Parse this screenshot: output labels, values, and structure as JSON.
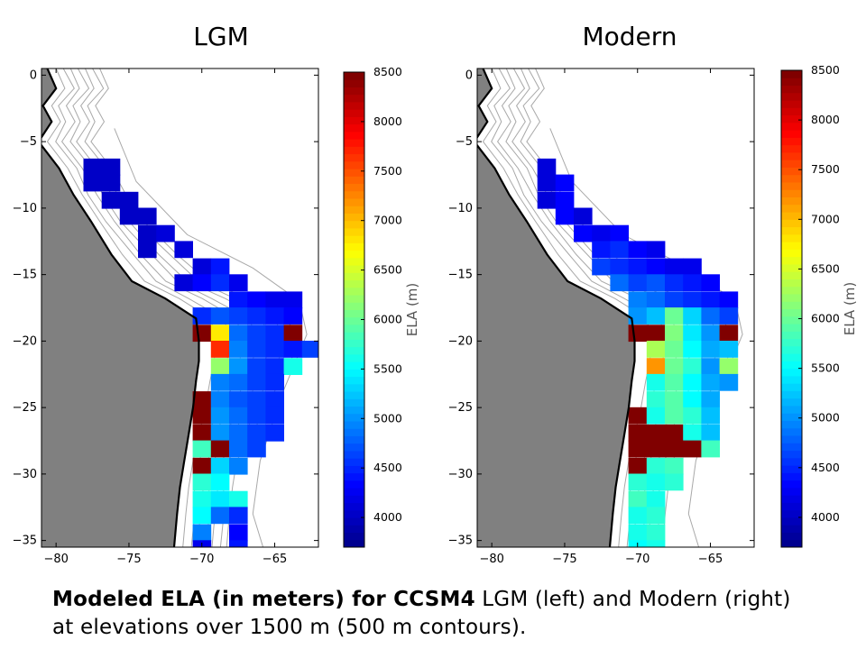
{
  "panels": [
    {
      "title": "LGM",
      "colorbar_label": "ELA (m)"
    },
    {
      "title": "Modern",
      "colorbar_label": "ELA (m)"
    }
  ],
  "caption": {
    "bold": "Modeled ELA (in meters) for CCSM4",
    "normal_line1": " LGM (left) and Modern (right)",
    "line2": "at elevations over 1500 m (500 m contours)."
  },
  "colors": {
    "land": "#808080",
    "coastline": "#000000",
    "contour": "#a8a8a8",
    "colormap": [
      "#00008f",
      "#0000ff",
      "#0080ff",
      "#00ffff",
      "#80ff80",
      "#ffff00",
      "#ff8000",
      "#ff0000",
      "#800000"
    ]
  },
  "chart_data": [
    {
      "type": "heatmap",
      "title": "LGM",
      "xlabel": "",
      "ylabel": "",
      "x_ticks": [
        -80,
        -75,
        -70,
        -65
      ],
      "y_ticks": [
        0,
        -5,
        -10,
        -15,
        -20,
        -25,
        -30,
        -35
      ],
      "xlim": [
        -81,
        -62
      ],
      "ylim": [
        -35.5,
        0.5
      ],
      "cell_size_deg": 1.25,
      "colorbar": {
        "label": "ELA (m)",
        "range": [
          3700,
          8500
        ],
        "ticks": [
          4000,
          4500,
          5000,
          5500,
          6000,
          6500,
          7000,
          7500,
          8000,
          8500
        ]
      },
      "cells": [
        {
          "lon": -77.5,
          "lat": -6.9,
          "ela": 4000
        },
        {
          "lon": -76.25,
          "lat": -6.9,
          "ela": 4000
        },
        {
          "lon": -77.5,
          "lat": -8.1,
          "ela": 4000
        },
        {
          "lon": -76.25,
          "lat": -8.1,
          "ela": 4000
        },
        {
          "lon": -76.25,
          "lat": -9.4,
          "ela": 4000
        },
        {
          "lon": -75.0,
          "lat": -9.4,
          "ela": 4000
        },
        {
          "lon": -75.0,
          "lat": -10.6,
          "ela": 4000
        },
        {
          "lon": -73.75,
          "lat": -10.6,
          "ela": 4000
        },
        {
          "lon": -73.75,
          "lat": -11.9,
          "ela": 4000
        },
        {
          "lon": -72.5,
          "lat": -11.9,
          "ela": 4100
        },
        {
          "lon": -73.75,
          "lat": -13.1,
          "ela": 4000
        },
        {
          "lon": -71.25,
          "lat": -13.1,
          "ela": 4100
        },
        {
          "lon": -70.0,
          "lat": -14.4,
          "ela": 4100
        },
        {
          "lon": -68.75,
          "lat": -14.4,
          "ela": 4400
        },
        {
          "lon": -71.25,
          "lat": -15.6,
          "ela": 4100
        },
        {
          "lon": -70.0,
          "lat": -15.6,
          "ela": 4300
        },
        {
          "lon": -68.75,
          "lat": -15.6,
          "ela": 4500
        },
        {
          "lon": -67.5,
          "lat": -15.6,
          "ela": 4200
        },
        {
          "lon": -67.5,
          "lat": -16.9,
          "ela": 4400
        },
        {
          "lon": -66.25,
          "lat": -16.9,
          "ela": 4300
        },
        {
          "lon": -65.0,
          "lat": -16.9,
          "ela": 4200
        },
        {
          "lon": -63.75,
          "lat": -16.9,
          "ela": 4200
        },
        {
          "lon": -70.0,
          "lat": -18.1,
          "ela": 4500
        },
        {
          "lon": -68.75,
          "lat": -18.1,
          "ela": 4700
        },
        {
          "lon": -67.5,
          "lat": -18.1,
          "ela": 4600
        },
        {
          "lon": -66.25,
          "lat": -18.1,
          "ela": 4500
        },
        {
          "lon": -65.0,
          "lat": -18.1,
          "ela": 4400
        },
        {
          "lon": -63.75,
          "lat": -18.1,
          "ela": 4300
        },
        {
          "lon": -70.0,
          "lat": -19.4,
          "ela": 8500
        },
        {
          "lon": -68.75,
          "lat": -19.4,
          "ela": 6800
        },
        {
          "lon": -67.5,
          "lat": -19.4,
          "ela": 4800
        },
        {
          "lon": -66.25,
          "lat": -19.4,
          "ela": 4600
        },
        {
          "lon": -65.0,
          "lat": -19.4,
          "ela": 4500
        },
        {
          "lon": -63.75,
          "lat": -19.4,
          "ela": 8500
        },
        {
          "lon": -68.75,
          "lat": -20.6,
          "ela": 7700
        },
        {
          "lon": -67.5,
          "lat": -20.6,
          "ela": 4900
        },
        {
          "lon": -66.25,
          "lat": -20.6,
          "ela": 4600
        },
        {
          "lon": -65.0,
          "lat": -20.6,
          "ela": 4500
        },
        {
          "lon": -63.75,
          "lat": -20.6,
          "ela": 4400
        },
        {
          "lon": -62.5,
          "lat": -20.6,
          "ela": 4600
        },
        {
          "lon": -68.75,
          "lat": -21.9,
          "ela": 6200
        },
        {
          "lon": -67.5,
          "lat": -21.9,
          "ela": 5000
        },
        {
          "lon": -66.25,
          "lat": -21.9,
          "ela": 4600
        },
        {
          "lon": -65.0,
          "lat": -21.9,
          "ela": 4500
        },
        {
          "lon": -63.75,
          "lat": -21.9,
          "ela": 5600
        },
        {
          "lon": -68.75,
          "lat": -23.1,
          "ela": 4900
        },
        {
          "lon": -67.5,
          "lat": -23.1,
          "ela": 4800
        },
        {
          "lon": -66.25,
          "lat": -23.1,
          "ela": 4600
        },
        {
          "lon": -65.0,
          "lat": -23.1,
          "ela": 4500
        },
        {
          "lon": -70.0,
          "lat": -24.4,
          "ela": 8500
        },
        {
          "lon": -68.75,
          "lat": -24.4,
          "ela": 4900
        },
        {
          "lon": -67.5,
          "lat": -24.4,
          "ela": 4700
        },
        {
          "lon": -66.25,
          "lat": -24.4,
          "ela": 4600
        },
        {
          "lon": -65.0,
          "lat": -24.4,
          "ela": 4500
        },
        {
          "lon": -70.0,
          "lat": -25.6,
          "ela": 8500
        },
        {
          "lon": -68.75,
          "lat": -25.6,
          "ela": 5000
        },
        {
          "lon": -67.5,
          "lat": -25.6,
          "ela": 4800
        },
        {
          "lon": -66.25,
          "lat": -25.6,
          "ela": 4600
        },
        {
          "lon": -65.0,
          "lat": -25.6,
          "ela": 4500
        },
        {
          "lon": -70.0,
          "lat": -26.9,
          "ela": 8500
        },
        {
          "lon": -68.75,
          "lat": -26.9,
          "ela": 5000
        },
        {
          "lon": -67.5,
          "lat": -26.9,
          "ela": 4800
        },
        {
          "lon": -66.25,
          "lat": -26.9,
          "ela": 4600
        },
        {
          "lon": -65.0,
          "lat": -26.9,
          "ela": 4500
        },
        {
          "lon": -70.0,
          "lat": -28.1,
          "ela": 5800
        },
        {
          "lon": -68.75,
          "lat": -28.1,
          "ela": 8500
        },
        {
          "lon": -67.5,
          "lat": -28.1,
          "ela": 4800
        },
        {
          "lon": -66.25,
          "lat": -28.1,
          "ela": 4600
        },
        {
          "lon": -70.0,
          "lat": -29.4,
          "ela": 8500
        },
        {
          "lon": -68.75,
          "lat": -29.4,
          "ela": 5300
        },
        {
          "lon": -67.5,
          "lat": -29.4,
          "ela": 4900
        },
        {
          "lon": -70.0,
          "lat": -30.6,
          "ela": 5700
        },
        {
          "lon": -68.75,
          "lat": -30.6,
          "ela": 5500
        },
        {
          "lon": -70.0,
          "lat": -31.9,
          "ela": 5600
        },
        {
          "lon": -68.75,
          "lat": -31.9,
          "ela": 5400
        },
        {
          "lon": -67.5,
          "lat": -31.9,
          "ela": 5600
        },
        {
          "lon": -70.0,
          "lat": -33.1,
          "ela": 5500
        },
        {
          "lon": -68.75,
          "lat": -33.1,
          "ela": 4800
        },
        {
          "lon": -67.5,
          "lat": -33.1,
          "ela": 4500
        },
        {
          "lon": -70.0,
          "lat": -34.4,
          "ela": 4900
        },
        {
          "lon": -67.5,
          "lat": -34.4,
          "ela": 4300
        },
        {
          "lon": -70.0,
          "lat": -35.6,
          "ela": 4200
        },
        {
          "lon": -67.5,
          "lat": -35.6,
          "ela": 4400
        }
      ]
    },
    {
      "type": "heatmap",
      "title": "Modern",
      "xlabel": "",
      "ylabel": "",
      "x_ticks": [
        -80,
        -75,
        -70,
        -65
      ],
      "y_ticks": [
        0,
        -5,
        -10,
        -15,
        -20,
        -25,
        -30,
        -35
      ],
      "xlim": [
        -81,
        -62
      ],
      "ylim": [
        -35.5,
        0.5
      ],
      "cell_size_deg": 1.25,
      "colorbar": {
        "label": "ELA (m)",
        "range": [
          3700,
          8500
        ],
        "ticks": [
          4000,
          4500,
          5000,
          5500,
          6000,
          6500,
          7000,
          7500,
          8000,
          8500
        ]
      },
      "cells": [
        {
          "lon": -76.25,
          "lat": -6.9,
          "ela": 4100
        },
        {
          "lon": -76.25,
          "lat": -8.1,
          "ela": 4100
        },
        {
          "lon": -75.0,
          "lat": -8.1,
          "ela": 4300
        },
        {
          "lon": -76.25,
          "lat": -9.4,
          "ela": 4100
        },
        {
          "lon": -75.0,
          "lat": -9.4,
          "ela": 4300
        },
        {
          "lon": -75.0,
          "lat": -10.6,
          "ela": 4300
        },
        {
          "lon": -73.75,
          "lat": -10.6,
          "ela": 4100
        },
        {
          "lon": -73.75,
          "lat": -11.9,
          "ela": 4300
        },
        {
          "lon": -72.5,
          "lat": -11.9,
          "ela": 4200
        },
        {
          "lon": -71.25,
          "lat": -11.9,
          "ela": 4300
        },
        {
          "lon": -72.5,
          "lat": -13.1,
          "ela": 4400
        },
        {
          "lon": -71.25,
          "lat": -13.1,
          "ela": 4500
        },
        {
          "lon": -70.0,
          "lat": -13.1,
          "ela": 4300
        },
        {
          "lon": -68.75,
          "lat": -13.1,
          "ela": 4200
        },
        {
          "lon": -72.5,
          "lat": -14.4,
          "ela": 4600
        },
        {
          "lon": -71.25,
          "lat": -14.4,
          "ela": 4500
        },
        {
          "lon": -70.0,
          "lat": -14.4,
          "ela": 4400
        },
        {
          "lon": -68.75,
          "lat": -14.4,
          "ela": 4300
        },
        {
          "lon": -67.5,
          "lat": -14.4,
          "ela": 4200
        },
        {
          "lon": -66.25,
          "lat": -14.4,
          "ela": 4200
        },
        {
          "lon": -71.25,
          "lat": -15.6,
          "ela": 4800
        },
        {
          "lon": -70.0,
          "lat": -15.6,
          "ela": 4600
        },
        {
          "lon": -68.75,
          "lat": -15.6,
          "ela": 4700
        },
        {
          "lon": -67.5,
          "lat": -15.6,
          "ela": 4500
        },
        {
          "lon": -66.25,
          "lat": -15.6,
          "ela": 4400
        },
        {
          "lon": -65.0,
          "lat": -15.6,
          "ela": 4300
        },
        {
          "lon": -70.0,
          "lat": -16.9,
          "ela": 4900
        },
        {
          "lon": -68.75,
          "lat": -16.9,
          "ela": 4800
        },
        {
          "lon": -67.5,
          "lat": -16.9,
          "ela": 4600
        },
        {
          "lon": -66.25,
          "lat": -16.9,
          "ela": 4500
        },
        {
          "lon": -65.0,
          "lat": -16.9,
          "ela": 4400
        },
        {
          "lon": -63.75,
          "lat": -16.9,
          "ela": 4300
        },
        {
          "lon": -70.0,
          "lat": -18.1,
          "ela": 5000
        },
        {
          "lon": -68.75,
          "lat": -18.1,
          "ela": 5200
        },
        {
          "lon": -67.5,
          "lat": -18.1,
          "ela": 6000
        },
        {
          "lon": -66.25,
          "lat": -18.1,
          "ela": 5300
        },
        {
          "lon": -65.0,
          "lat": -18.1,
          "ela": 4800
        },
        {
          "lon": -63.75,
          "lat": -18.1,
          "ela": 4600
        },
        {
          "lon": -70.0,
          "lat": -19.4,
          "ela": 8500
        },
        {
          "lon": -68.75,
          "lat": -19.4,
          "ela": 8500
        },
        {
          "lon": -67.5,
          "lat": -19.4,
          "ela": 6100
        },
        {
          "lon": -66.25,
          "lat": -19.4,
          "ela": 5400
        },
        {
          "lon": -65.0,
          "lat": -19.4,
          "ela": 5000
        },
        {
          "lon": -63.75,
          "lat": -19.4,
          "ela": 8500
        },
        {
          "lon": -68.75,
          "lat": -20.6,
          "ela": 6300
        },
        {
          "lon": -67.5,
          "lat": -20.6,
          "ela": 6000
        },
        {
          "lon": -66.25,
          "lat": -20.6,
          "ela": 5500
        },
        {
          "lon": -65.0,
          "lat": -20.6,
          "ela": 5100
        },
        {
          "lon": -63.75,
          "lat": -20.6,
          "ela": 5200
        },
        {
          "lon": -68.75,
          "lat": -21.9,
          "ela": 7200
        },
        {
          "lon": -67.5,
          "lat": -21.9,
          "ela": 6000
        },
        {
          "lon": -66.25,
          "lat": -21.9,
          "ela": 5700
        },
        {
          "lon": -65.0,
          "lat": -21.9,
          "ela": 5000
        },
        {
          "lon": -63.75,
          "lat": -21.9,
          "ela": 6200
        },
        {
          "lon": -68.75,
          "lat": -23.1,
          "ela": 5600
        },
        {
          "lon": -67.5,
          "lat": -23.1,
          "ela": 5900
        },
        {
          "lon": -66.25,
          "lat": -23.1,
          "ela": 5500
        },
        {
          "lon": -65.0,
          "lat": -23.1,
          "ela": 5100
        },
        {
          "lon": -63.75,
          "lat": -23.1,
          "ela": 5000
        },
        {
          "lon": -68.75,
          "lat": -24.4,
          "ela": 5700
        },
        {
          "lon": -67.5,
          "lat": -24.4,
          "ela": 5900
        },
        {
          "lon": -66.25,
          "lat": -24.4,
          "ela": 5500
        },
        {
          "lon": -65.0,
          "lat": -24.4,
          "ela": 5100
        },
        {
          "lon": -70.0,
          "lat": -25.6,
          "ela": 8500
        },
        {
          "lon": -68.75,
          "lat": -25.6,
          "ela": 5600
        },
        {
          "lon": -67.5,
          "lat": -25.6,
          "ela": 5900
        },
        {
          "lon": -66.25,
          "lat": -25.6,
          "ela": 5700
        },
        {
          "lon": -65.0,
          "lat": -25.6,
          "ela": 5200
        },
        {
          "lon": -70.0,
          "lat": -26.9,
          "ela": 8500
        },
        {
          "lon": -68.75,
          "lat": -26.9,
          "ela": 8500
        },
        {
          "lon": -67.5,
          "lat": -26.9,
          "ela": 8500
        },
        {
          "lon": -66.25,
          "lat": -26.9,
          "ela": 5600
        },
        {
          "lon": -65.0,
          "lat": -26.9,
          "ela": 5200
        },
        {
          "lon": -70.0,
          "lat": -28.1,
          "ela": 8500
        },
        {
          "lon": -68.75,
          "lat": -28.1,
          "ela": 8500
        },
        {
          "lon": -67.5,
          "lat": -28.1,
          "ela": 8500
        },
        {
          "lon": -66.25,
          "lat": -28.1,
          "ela": 8500
        },
        {
          "lon": -65.0,
          "lat": -28.1,
          "ela": 5800
        },
        {
          "lon": -70.0,
          "lat": -29.4,
          "ela": 8500
        },
        {
          "lon": -68.75,
          "lat": -29.4,
          "ela": 5700
        },
        {
          "lon": -67.5,
          "lat": -29.4,
          "ela": 5800
        },
        {
          "lon": -70.0,
          "lat": -30.6,
          "ela": 5700
        },
        {
          "lon": -68.75,
          "lat": -30.6,
          "ela": 5600
        },
        {
          "lon": -67.5,
          "lat": -30.6,
          "ela": 5700
        },
        {
          "lon": -70.0,
          "lat": -31.9,
          "ela": 5800
        },
        {
          "lon": -68.75,
          "lat": -31.9,
          "ela": 5600
        },
        {
          "lon": -70.0,
          "lat": -33.1,
          "ela": 5600
        },
        {
          "lon": -68.75,
          "lat": -33.1,
          "ela": 5700
        },
        {
          "lon": -70.0,
          "lat": -34.4,
          "ela": 5600
        },
        {
          "lon": -68.75,
          "lat": -34.4,
          "ela": 5700
        },
        {
          "lon": -70.0,
          "lat": -35.6,
          "ela": 5500
        },
        {
          "lon": -68.75,
          "lat": -35.6,
          "ela": 5600
        }
      ]
    }
  ]
}
